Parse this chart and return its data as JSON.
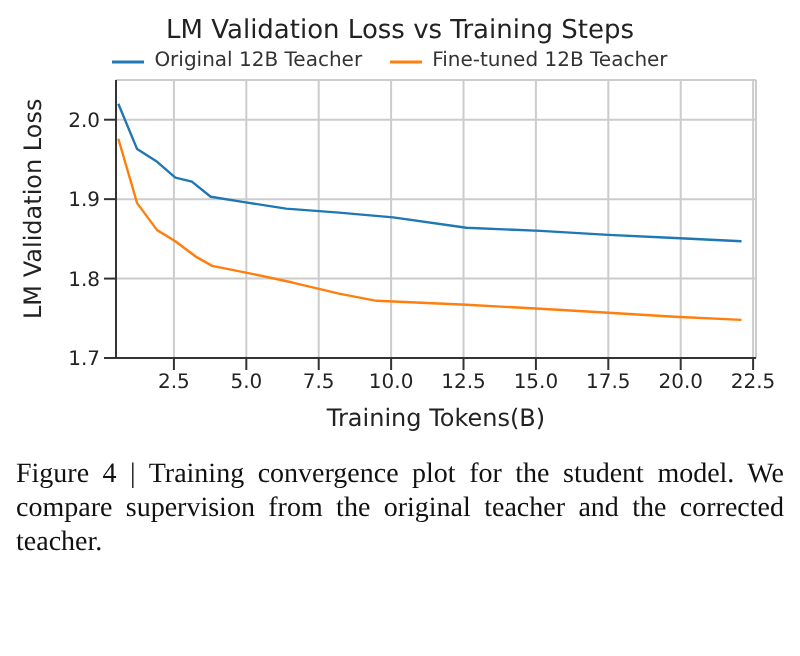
{
  "chart_data": {
    "type": "line",
    "title": "LM Validation Loss vs Training Steps",
    "xlabel": "Training Tokens(B)",
    "ylabel": "LM Validation Loss",
    "series": [
      {
        "name": "Original 12B Teacher",
        "color": "#1f77b4",
        "x": [
          0.58,
          1.23,
          1.92,
          2.55,
          3.12,
          3.77,
          4.98,
          6.37,
          8.2,
          10.07,
          12.6,
          15.16,
          17.5,
          19.8,
          22.1
        ],
        "values": [
          2.02,
          1.963,
          1.947,
          1.927,
          1.922,
          1.903,
          1.896,
          1.888,
          1.883,
          1.877,
          1.864,
          1.86,
          1.855,
          1.851,
          1.847
        ]
      },
      {
        "name": "Fine-tuned 12B Teacher",
        "color": "#ff7f0e",
        "x": [
          0.58,
          1.23,
          1.92,
          2.55,
          3.24,
          3.82,
          5.2,
          6.6,
          8.2,
          9.5,
          12.6,
          15.16,
          17.5,
          19.8,
          22.1
        ],
        "values": [
          1.976,
          1.895,
          1.861,
          1.847,
          1.828,
          1.816,
          1.806,
          1.795,
          1.781,
          1.772,
          1.767,
          1.762,
          1.757,
          1.752,
          1.748
        ]
      }
    ],
    "xlim": [
      0.5,
      22.6
    ],
    "ylim": [
      1.7,
      2.05
    ],
    "xticks": [
      {
        "value": 2.5,
        "label": "2.5"
      },
      {
        "value": 5,
        "label": "5.0"
      },
      {
        "value": 7.5,
        "label": "7.5"
      },
      {
        "value": 10,
        "label": "10.0"
      },
      {
        "value": 12.5,
        "label": "12.5"
      },
      {
        "value": 15,
        "label": "15.0"
      },
      {
        "value": 17.5,
        "label": "17.5"
      },
      {
        "value": 20,
        "label": "20.0"
      },
      {
        "value": 22.5,
        "label": "22.5"
      }
    ],
    "yticks": [
      {
        "value": 1.7,
        "label": "1.7"
      },
      {
        "value": 1.8,
        "label": "1.8"
      },
      {
        "value": 1.9,
        "label": "1.9"
      },
      {
        "value": 2.0,
        "label": "2.0"
      }
    ],
    "grid": true,
    "legend": "top",
    "marker": "none",
    "line_style": "solid",
    "annotations": [
      "Figure 4 | Training convergence plot for the student model. We compare supervision from the original teacher and the corrected teacher."
    ]
  }
}
